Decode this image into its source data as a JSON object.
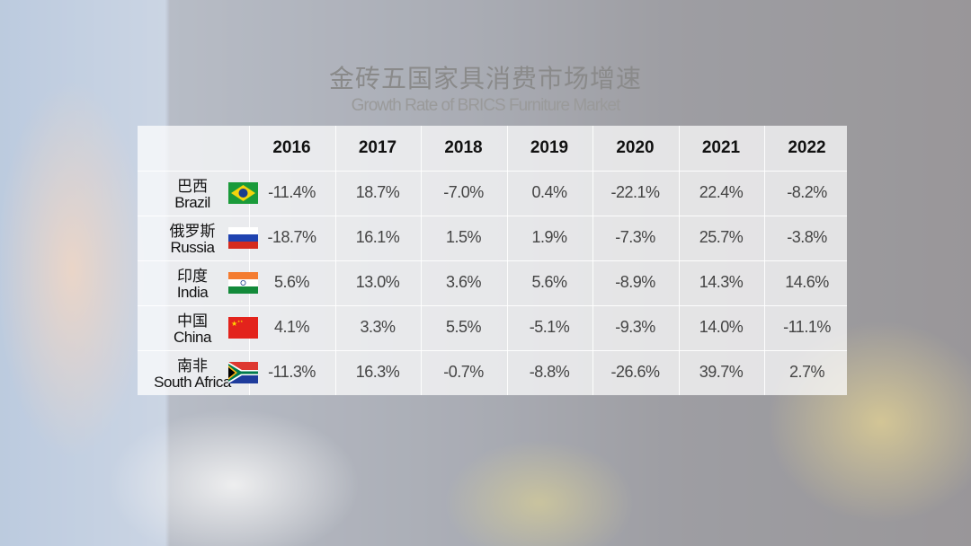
{
  "title": "金砖五国家具消费市场增速",
  "subtitle": "Growth Rate of BRICS Furniture Market",
  "chart_data": {
    "type": "table",
    "title": "金砖五国家具消费市场增速",
    "subtitle": "Growth Rate of BRICS Furniture Market",
    "columns": [
      "2016",
      "2017",
      "2018",
      "2019",
      "2020",
      "2021",
      "2022"
    ],
    "rows": [
      {
        "cn": "巴西",
        "en": "Brazil",
        "flag": "brazil-flag",
        "values": [
          "-11.4%",
          "18.7%",
          "-7.0%",
          "0.4%",
          "-22.1%",
          "22.4%",
          "-8.2%"
        ]
      },
      {
        "cn": "俄罗斯",
        "en": "Russia",
        "flag": "russia-flag",
        "values": [
          "-18.7%",
          "16.1%",
          "1.5%",
          "1.9%",
          "-7.3%",
          "25.7%",
          "-3.8%"
        ]
      },
      {
        "cn": "印度",
        "en": "India",
        "flag": "india-flag",
        "values": [
          "5.6%",
          "13.0%",
          "3.6%",
          "5.6%",
          "-8.9%",
          "14.3%",
          "14.6%"
        ]
      },
      {
        "cn": "中国",
        "en": "China",
        "flag": "china-flag",
        "values": [
          "4.1%",
          "3.3%",
          "5.5%",
          "-5.1%",
          "-9.3%",
          "14.0%",
          "-11.1%"
        ]
      },
      {
        "cn": "南非",
        "en": "South Africa",
        "flag": "south-africa-flag",
        "values": [
          "-11.3%",
          "16.3%",
          "-0.7%",
          "-8.8%",
          "-26.6%",
          "39.7%",
          "2.7%"
        ]
      }
    ]
  }
}
